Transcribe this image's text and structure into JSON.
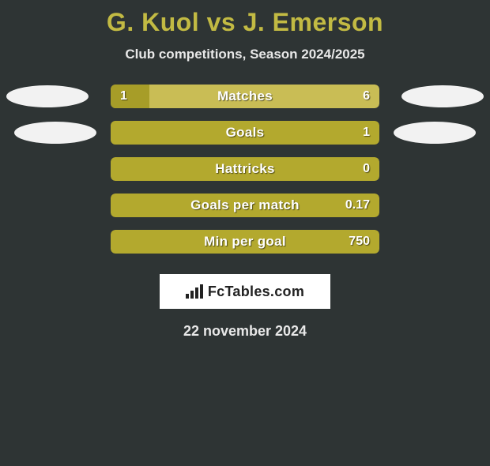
{
  "title": "G. Kuol vs J. Emerson",
  "subtitle": "Club competitions, Season 2024/2025",
  "date": "22 november 2024",
  "logo_text": "FcTables.com",
  "colors": {
    "background": "#2e3434",
    "accent_title": "#c2ba43",
    "left_bar": "#b3a92e",
    "right_bar": "#c9bd55",
    "left_bar_alt": "#a79d28",
    "text": "#ffffff",
    "oval": "#f2f2f2",
    "logo_bg": "#ffffff"
  },
  "stats": [
    {
      "label": "Matches",
      "left_value": "1",
      "right_value": "6",
      "left_num": 1,
      "right_num": 6,
      "left_color": "#a79d28",
      "right_color": "#c9bd55",
      "show_ovals": true
    },
    {
      "label": "Goals",
      "left_value": "",
      "right_value": "1",
      "left_num": 0,
      "right_num": 1,
      "left_color": "#b3a92e",
      "right_color": "#b3a92e",
      "show_ovals": true
    },
    {
      "label": "Hattricks",
      "left_value": "",
      "right_value": "0",
      "left_num": 0,
      "right_num": 0,
      "left_color": "#b3a92e",
      "right_color": "#b3a92e",
      "show_ovals": false
    },
    {
      "label": "Goals per match",
      "left_value": "",
      "right_value": "0.17",
      "left_num": 0,
      "right_num": 0.17,
      "left_color": "#b3a92e",
      "right_color": "#b3a92e",
      "show_ovals": false
    },
    {
      "label": "Min per goal",
      "left_value": "",
      "right_value": "750",
      "left_num": 0,
      "right_num": 750,
      "left_color": "#b3a92e",
      "right_color": "#b3a92e",
      "show_ovals": false
    }
  ]
}
